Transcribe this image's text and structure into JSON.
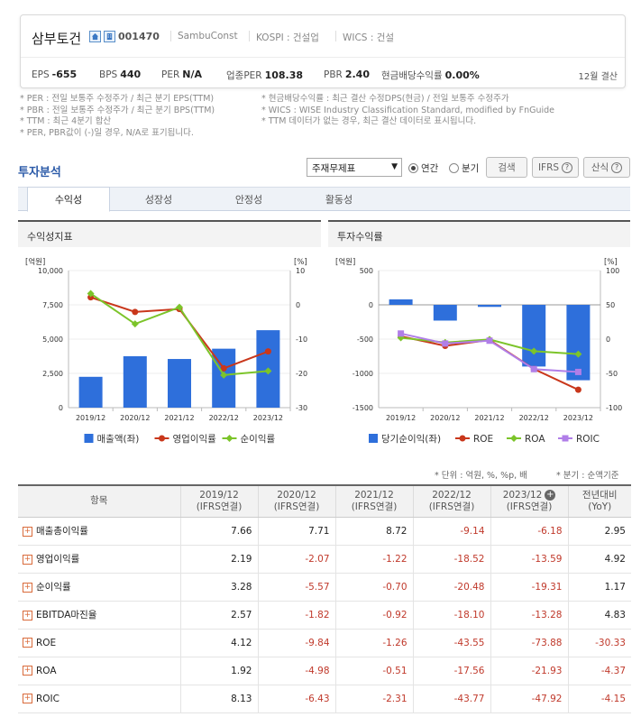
{
  "header": {
    "company_name": "삼부토건",
    "company_code": "001470",
    "english_name": "SambuConst",
    "kospi": "KOSPI : 건설업",
    "wics": "WICS : 건설",
    "metrics": [
      {
        "label": "EPS",
        "value": "-655"
      },
      {
        "label": "BPS",
        "value": "440"
      },
      {
        "label": "PER",
        "value": "N/A"
      },
      {
        "label": "업종PER",
        "value": "108.38"
      },
      {
        "label": "PBR",
        "value": "2.40"
      },
      {
        "label": "현금배당수익률",
        "value": "0.00%"
      }
    ],
    "settlement": "12월 결산"
  },
  "notes_left": [
    "* PER : 전일 보통주 수정주가 / 최근 분기 EPS(TTM)",
    "* PBR : 전일 보통주 수정주가 / 최근 분기 BPS(TTM)",
    "* TTM : 최근 4분기 합산",
    "* PER, PBR값이 (-)일 경우, N/A로 표기됩니다."
  ],
  "notes_right": [
    "* 현금배당수익률 : 최근 결산 수정DPS(현금) / 전일 보통주 수정주가",
    "* WICS : WISE Industry Classification Standard, modified by FnGuide",
    "* TTM 데이터가 없는 경우, 최근 결산 데이터로 표시됩니다."
  ],
  "analysis": {
    "title": "투자분석",
    "select_value": "주재무제표",
    "radio_annual": "연간",
    "radio_quarter": "분기",
    "search_btn": "검색",
    "ifrs_btn": "IFRS",
    "formula_btn": "산식",
    "tabs": [
      "수익성",
      "성장성",
      "안정성",
      "활동성"
    ]
  },
  "panels": {
    "left_title": "수익성지표",
    "right_title": "투자수익률"
  },
  "colors": {
    "bar": "#2e6fdb",
    "red": "#c9371b",
    "green": "#7cc42a",
    "purple": "#b07ee8"
  },
  "chart_data": [
    {
      "type": "bar",
      "categories": [
        "2019/12",
        "2020/12",
        "2021/12",
        "2022/12",
        "2023/12"
      ],
      "ylabel_left": "[억원]",
      "ylabel_right": "[%]",
      "ylim_left": [
        0,
        10000
      ],
      "yticks_left": [
        "0",
        "2,500",
        "5,000",
        "7,500",
        "10,000"
      ],
      "ylim_right": [
        -30,
        10
      ],
      "yticks_right": [
        "-30",
        "-20",
        "-10",
        "0",
        "10"
      ],
      "bar_series": {
        "name": "매출액(좌)",
        "values": [
          2250,
          3750,
          3550,
          4300,
          5650
        ]
      },
      "line_series": [
        {
          "name": "영업이익률",
          "color": "red",
          "values": [
            2.19,
            -2.07,
            -1.22,
            -18.52,
            -13.59
          ]
        },
        {
          "name": "순이익률",
          "color": "green",
          "values": [
            3.28,
            -5.57,
            -0.7,
            -20.48,
            -19.31
          ]
        }
      ]
    },
    {
      "type": "bar",
      "categories": [
        "2019/12",
        "2020/12",
        "2021/12",
        "2022/12",
        "2023/12"
      ],
      "ylabel_left": "[억원]",
      "ylabel_right": "[%]",
      "ylim_left": [
        -1500,
        500
      ],
      "yticks_left": [
        "-1500",
        "-1000",
        "-500",
        "0",
        "500"
      ],
      "ylim_right": [
        -100,
        100
      ],
      "yticks_right": [
        "-100",
        "-50",
        "0",
        "50",
        "100"
      ],
      "bar_series": {
        "name": "당기순이익(좌)",
        "values": [
          80,
          -230,
          -30,
          -900,
          -1100
        ]
      },
      "line_series": [
        {
          "name": "ROE",
          "color": "red",
          "values": [
            4.12,
            -9.84,
            -1.26,
            -43.55,
            -73.88
          ]
        },
        {
          "name": "ROA",
          "color": "green",
          "values": [
            1.92,
            -4.98,
            -0.51,
            -17.56,
            -21.93
          ]
        },
        {
          "name": "ROIC",
          "color": "purple",
          "values": [
            8.13,
            -6.43,
            -2.31,
            -43.77,
            -47.92
          ]
        }
      ]
    }
  ],
  "units_note": {
    "left": "* 단위 : 억원, %, %p, 배",
    "right": "* 분기 : 순액기준"
  },
  "table": {
    "headers": [
      {
        "line1": "항목",
        "line2": ""
      },
      {
        "line1": "2019/12",
        "line2": "(IFRS연결)"
      },
      {
        "line1": "2020/12",
        "line2": "(IFRS연결)"
      },
      {
        "line1": "2021/12",
        "line2": "(IFRS연결)"
      },
      {
        "line1": "2022/12",
        "line2": "(IFRS연결)"
      },
      {
        "line1": "2023/12",
        "line2": "(IFRS연결)"
      },
      {
        "line1": "전년대비",
        "line2": "(YoY)"
      }
    ],
    "rows": [
      {
        "label": "매출총이익률",
        "values": [
          "7.66",
          "7.71",
          "8.72",
          "-9.14",
          "-6.18",
          "2.95"
        ]
      },
      {
        "label": "영업이익률",
        "values": [
          "2.19",
          "-2.07",
          "-1.22",
          "-18.52",
          "-13.59",
          "4.92"
        ]
      },
      {
        "label": "순이익률",
        "values": [
          "3.28",
          "-5.57",
          "-0.70",
          "-20.48",
          "-19.31",
          "1.17"
        ]
      },
      {
        "label": "EBITDA마진율",
        "values": [
          "2.57",
          "-1.82",
          "-0.92",
          "-18.10",
          "-13.28",
          "4.83"
        ]
      },
      {
        "label": "ROE",
        "values": [
          "4.12",
          "-9.84",
          "-1.26",
          "-43.55",
          "-73.88",
          "-30.33"
        ]
      },
      {
        "label": "ROA",
        "values": [
          "1.92",
          "-4.98",
          "-0.51",
          "-17.56",
          "-21.93",
          "-4.37"
        ]
      },
      {
        "label": "ROIC",
        "values": [
          "8.13",
          "-6.43",
          "-2.31",
          "-43.77",
          "-47.92",
          "-4.15"
        ]
      }
    ]
  }
}
